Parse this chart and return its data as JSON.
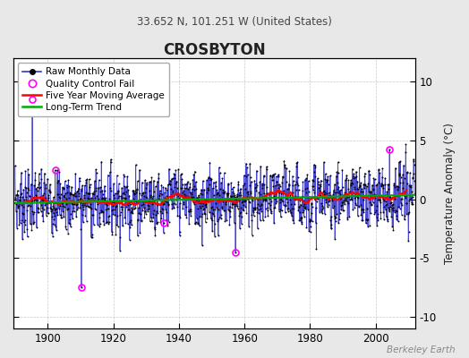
{
  "title": "CROSBYTON",
  "subtitle": "33.652 N, 101.251 W (United States)",
  "ylabel": "Temperature Anomaly (°C)",
  "watermark": "Berkeley Earth",
  "year_start": 1890,
  "year_end": 2011,
  "ylim": [
    -11,
    12
  ],
  "yticks": [
    -10,
    -5,
    0,
    5,
    10
  ],
  "xticks": [
    1900,
    1920,
    1940,
    1960,
    1980,
    2000
  ],
  "raw_color": "#3333cc",
  "dot_color": "#000000",
  "qc_color": "#ff00ff",
  "moving_avg_color": "#ff0000",
  "trend_color": "#00aa00",
  "background_color": "#e8e8e8",
  "plot_bg_color": "#ffffff",
  "seed": 7,
  "noise_std": 1.8,
  "qc_years": [
    1895,
    1902,
    1910,
    1935,
    1957,
    2004
  ],
  "qc_values": [
    8.5,
    2.5,
    -7.5,
    -2.0,
    -4.5,
    4.2
  ]
}
